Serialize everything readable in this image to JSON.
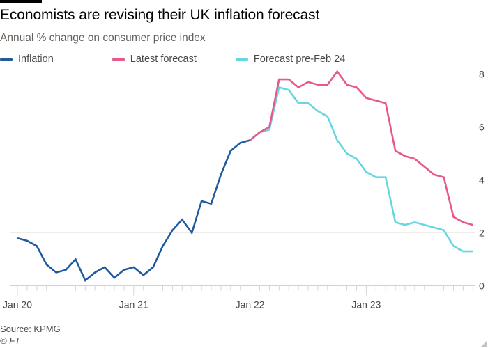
{
  "header": {
    "title": "Economists are revising their UK inflation forecast",
    "subtitle": "Annual % change on consumer price index"
  },
  "legend": [
    {
      "name": "Inflation",
      "color": "#1f5a9e"
    },
    {
      "name": "Latest forecast",
      "color": "#e8588a"
    },
    {
      "name": "Forecast pre-Feb 24",
      "color": "#65d6e2"
    }
  ],
  "footer": {
    "source": "Source: KPMG",
    "copyright": "© FT"
  },
  "chart_data": {
    "type": "line",
    "title": "Economists are revising their UK inflation forecast",
    "subtitle": "Annual % change on consumer price index",
    "xlabel": "",
    "ylabel": "",
    "ylim": [
      0,
      8
    ],
    "yticks": [
      0,
      2,
      4,
      6,
      8
    ],
    "y_axis_side": "right",
    "grid": true,
    "legend_position": "top-left",
    "x_start": "Jan 2020",
    "x_end": "Dec 2023",
    "x_step": "month",
    "xtick_labels": [
      {
        "month_index": 0,
        "label": "Jan 20"
      },
      {
        "month_index": 12,
        "label": "Jan 21"
      },
      {
        "month_index": 24,
        "label": "Jan 22"
      },
      {
        "month_index": 36,
        "label": "Jan 23"
      }
    ],
    "series": [
      {
        "name": "Inflation",
        "color": "#1f5a9e",
        "start_month_index": 0,
        "values": [
          1.8,
          1.7,
          1.5,
          0.8,
          0.5,
          0.6,
          1.0,
          0.2,
          0.5,
          0.7,
          0.3,
          0.6,
          0.7,
          0.4,
          0.7,
          1.5,
          2.1,
          2.5,
          2.0,
          3.2,
          3.1,
          4.2,
          5.1,
          5.4,
          5.5
        ]
      },
      {
        "name": "Forecast pre-Feb 24",
        "color": "#65d6e2",
        "start_month_index": 24,
        "values": [
          5.5,
          5.8,
          5.9,
          7.5,
          7.4,
          6.9,
          6.9,
          6.6,
          6.4,
          5.5,
          5.0,
          4.8,
          4.3,
          4.1,
          4.1,
          2.4,
          2.3,
          2.4,
          2.3,
          2.2,
          2.1,
          1.5,
          1.3,
          1.3
        ]
      },
      {
        "name": "Latest forecast",
        "color": "#e8588a",
        "start_month_index": 24,
        "values": [
          5.5,
          5.8,
          6.0,
          7.8,
          7.8,
          7.5,
          7.7,
          7.6,
          7.6,
          8.1,
          7.6,
          7.5,
          7.1,
          7.0,
          6.9,
          5.1,
          4.9,
          4.8,
          4.5,
          4.2,
          4.1,
          2.6,
          2.4,
          2.3
        ]
      }
    ]
  }
}
